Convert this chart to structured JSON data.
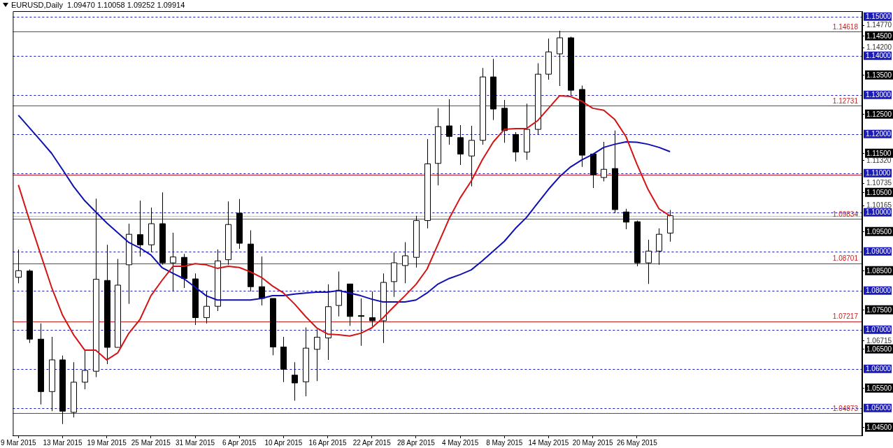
{
  "chart_data": {
    "type": "candlestick",
    "title": "EURUSD,Daily  1.09470 1.10058 1.09252 1.09914",
    "categories": [
      "9 Mar 2015",
      null,
      null,
      null,
      "13 Mar 2015",
      null,
      null,
      null,
      "19 Mar 2015",
      null,
      null,
      null,
      "25 Mar 2015",
      null,
      null,
      null,
      "31 Mar 2015",
      null,
      null,
      null,
      "6 Apr 2015",
      null,
      null,
      null,
      "10 Apr 2015",
      null,
      null,
      null,
      "16 Apr 2015",
      null,
      null,
      null,
      "22 Apr 2015",
      null,
      null,
      null,
      "28 Apr 2015",
      null,
      null,
      null,
      "4 May 2015",
      null,
      null,
      null,
      "8 May 2015",
      null,
      null,
      null,
      "14 May 2015",
      null,
      null,
      null,
      "20 May 2015",
      null,
      null,
      null,
      "26 May 2015",
      null,
      null,
      null
    ],
    "ohlc": [
      [
        1.0834,
        1.0905,
        1.0819,
        1.0851
      ],
      [
        1.085,
        1.0854,
        1.0666,
        1.0676
      ],
      [
        1.0676,
        1.0716,
        1.0509,
        1.0542
      ],
      [
        1.0542,
        1.0682,
        1.0492,
        1.0623
      ],
      [
        1.0623,
        1.0634,
        1.0459,
        1.0492
      ],
      [
        1.0489,
        1.0617,
        1.0476,
        1.0566
      ],
      [
        1.0566,
        1.0648,
        1.0548,
        1.0596
      ],
      [
        1.0594,
        1.1035,
        1.0579,
        1.0829
      ],
      [
        1.0826,
        1.0917,
        1.0612,
        1.0655
      ],
      [
        1.0655,
        1.0881,
        1.0655,
        1.0814
      ],
      [
        1.0866,
        1.0971,
        1.0766,
        1.0944
      ],
      [
        1.0943,
        1.103,
        1.0887,
        1.0917
      ],
      [
        1.0917,
        1.1012,
        1.0898,
        1.0971
      ],
      [
        1.0971,
        1.1051,
        1.0866,
        1.0871
      ],
      [
        1.0871,
        1.0948,
        1.0798,
        1.0886
      ],
      [
        1.0885,
        1.0894,
        1.0807,
        1.0831
      ],
      [
        1.083,
        1.0844,
        1.0712,
        1.0731
      ],
      [
        1.0731,
        1.0798,
        1.0716,
        1.076
      ],
      [
        1.076,
        1.0905,
        1.0748,
        1.0876
      ],
      [
        1.0879,
        1.1028,
        1.0866,
        1.0969
      ],
      [
        1.0998,
        1.1034,
        1.0907,
        1.0921
      ],
      [
        1.0919,
        1.0954,
        1.0798,
        1.081
      ],
      [
        1.081,
        1.0887,
        1.0762,
        1.078
      ],
      [
        1.078,
        1.078,
        1.0635,
        1.0656
      ],
      [
        1.0656,
        1.0682,
        1.0566,
        1.0599
      ],
      [
        1.0584,
        1.0617,
        1.0519,
        1.0564
      ],
      [
        1.0567,
        1.0706,
        1.053,
        1.0653
      ],
      [
        1.065,
        1.0701,
        1.0569,
        1.0681
      ],
      [
        1.0679,
        1.0816,
        1.0623,
        1.0759
      ],
      [
        1.0762,
        1.0849,
        1.0734,
        1.0801
      ],
      [
        1.0817,
        1.0817,
        1.071,
        1.0734
      ],
      [
        1.0736,
        1.078,
        1.0659,
        1.0735
      ],
      [
        1.0731,
        1.0798,
        1.0709,
        1.0723
      ],
      [
        1.0723,
        1.0844,
        1.0666,
        1.0821
      ],
      [
        1.0823,
        1.0898,
        1.0784,
        1.0871
      ],
      [
        1.0864,
        1.0924,
        1.0819,
        1.0889
      ],
      [
        1.0885,
        1.0991,
        1.0859,
        1.0979
      ],
      [
        1.0979,
        1.1187,
        1.0959,
        1.1124
      ],
      [
        1.1125,
        1.1266,
        1.1069,
        1.1219
      ],
      [
        1.1221,
        1.1289,
        1.1173,
        1.1194
      ],
      [
        1.1191,
        1.1223,
        1.1121,
        1.1149
      ],
      [
        1.1144,
        1.1221,
        1.1066,
        1.1184
      ],
      [
        1.1184,
        1.1369,
        1.1173,
        1.1346
      ],
      [
        1.1346,
        1.1392,
        1.1236,
        1.1264
      ],
      [
        1.1266,
        1.1287,
        1.1178,
        1.1209
      ],
      [
        1.1199,
        1.1205,
        1.113,
        1.1154
      ],
      [
        1.1154,
        1.1278,
        1.1134,
        1.1212
      ],
      [
        1.1212,
        1.1381,
        1.1199,
        1.1353
      ],
      [
        1.1353,
        1.1444,
        1.1339,
        1.141
      ],
      [
        1.1405,
        1.1464,
        1.1323,
        1.1446
      ],
      [
        1.1446,
        1.1449,
        1.1299,
        1.1312
      ],
      [
        1.1314,
        1.1324,
        1.1116,
        1.1146
      ],
      [
        1.1149,
        1.1149,
        1.1062,
        1.1096
      ],
      [
        1.1089,
        1.118,
        1.1079,
        1.111
      ],
      [
        1.1112,
        1.1209,
        1.0998,
        1.1007
      ],
      [
        1.1001,
        1.1009,
        1.0957,
        1.0975
      ],
      [
        1.0976,
        1.0979,
        1.0862,
        1.0871
      ],
      [
        1.0871,
        1.093,
        1.0817,
        1.0901
      ],
      [
        1.0901,
        1.0959,
        1.0866,
        1.0944
      ],
      [
        1.0947,
        1.10058,
        1.09252,
        1.09914
      ]
    ],
    "series": [
      {
        "type": "line",
        "color": "#d41414",
        "values": [
          1.107,
          1.098,
          1.0894,
          1.0809,
          1.0737,
          1.0687,
          1.0648,
          1.0648,
          1.0623,
          1.0641,
          1.0691,
          1.0726,
          1.0787,
          1.0826,
          1.0862,
          1.0862,
          1.0869,
          1.0866,
          1.0857,
          1.0862,
          1.0859,
          1.0848,
          1.0834,
          1.0812,
          1.0794,
          1.0766,
          1.0734,
          1.0705,
          1.0689,
          1.0687,
          1.0684,
          1.0691,
          1.0705,
          1.073,
          1.0759,
          1.0787,
          1.0816,
          1.0855,
          1.0919,
          1.0984,
          1.1037,
          1.108,
          1.1134,
          1.118,
          1.1212,
          1.1214,
          1.1214,
          1.1234,
          1.1266,
          1.1298,
          1.1296,
          1.1284,
          1.1266,
          1.1261,
          1.1237,
          1.1194,
          1.1123,
          1.1059,
          1.1009,
          1.0991
        ]
      },
      {
        "type": "line",
        "color": "#1010b0",
        "values": [
          1.1248,
          1.1216,
          1.1184,
          1.1151,
          1.1109,
          1.1066,
          1.103,
          1.1001,
          1.0973,
          1.0948,
          1.0923,
          1.0909,
          1.0891,
          1.0859,
          1.0844,
          1.083,
          1.0809,
          1.0787,
          1.0776,
          1.0776,
          1.0776,
          1.0776,
          1.078,
          1.0787,
          1.0787,
          1.0791,
          1.0794,
          1.0796,
          1.0796,
          1.08,
          1.0794,
          1.0787,
          1.0778,
          1.0771,
          1.0771,
          1.0771,
          1.0776,
          1.0794,
          1.0817,
          1.0831,
          1.0841,
          1.0853,
          1.0876,
          1.0901,
          1.0926,
          1.0959,
          1.0987,
          1.1023,
          1.1059,
          1.1091,
          1.1116,
          1.1134,
          1.1148,
          1.1166,
          1.1174,
          1.118,
          1.1179,
          1.1174,
          1.1166,
          1.1155
        ]
      }
    ],
    "ylim": [
      1.043,
      1.1514
    ],
    "yticks": [
      {
        "value": 1.1477,
        "label": "1.14770"
      },
      {
        "value": 1.145,
        "label": "1.14500"
      },
      {
        "value": 1.142,
        "label": "1.14200"
      },
      {
        "value": 1.135,
        "label": "1.13500"
      },
      {
        "value": 1.125,
        "label": "1.12500"
      },
      {
        "value": 1.115,
        "label": "1.11500"
      },
      {
        "value": 1.1132,
        "label": "1.11320"
      },
      {
        "value": 1.10735,
        "label": "1.10735"
      },
      {
        "value": 1.105,
        "label": "1.10500"
      },
      {
        "value": 1.10165,
        "label": "1.10165"
      },
      {
        "value": 1.095,
        "label": "1.09500"
      },
      {
        "value": 1.085,
        "label": "1.08500"
      },
      {
        "value": 1.075,
        "label": "1.07500"
      },
      {
        "value": 1.06715,
        "label": "1.06715"
      },
      {
        "value": 1.065,
        "label": "1.06500"
      },
      {
        "value": 1.055,
        "label": "1.05500"
      },
      {
        "value": 1.045,
        "label": "1.04500"
      }
    ],
    "ref_lines": [
      {
        "axis": "y",
        "value": 1.15,
        "label": "1.15000",
        "color": "#1a1ab4",
        "line_style": "dashed"
      },
      {
        "axis": "y",
        "value": 1.14,
        "label": "1.14000",
        "color": "#1a1ab4",
        "line_style": "dashed"
      },
      {
        "axis": "y",
        "value": 1.13,
        "label": "1.13000",
        "color": "#1a1ab4",
        "line_style": "dashed"
      },
      {
        "axis": "y",
        "value": 1.12,
        "label": "1.12000",
        "color": "#1a1ab4",
        "line_style": "dashed"
      },
      {
        "axis": "y",
        "value": 1.11,
        "label": "1.11000",
        "color": "#1a1ab4",
        "line_style": "dashed"
      },
      {
        "axis": "y",
        "value": 1.1,
        "label": "1.10000",
        "color": "#1a1ab4",
        "line_style": "dashed"
      },
      {
        "axis": "y",
        "value": 1.09,
        "label": "1.09000",
        "color": "#1a1ab4",
        "line_style": "dashed"
      },
      {
        "axis": "y",
        "value": 1.08,
        "label": "1.08000",
        "color": "#1a1ab4",
        "line_style": "dashed"
      },
      {
        "axis": "y",
        "value": 1.07,
        "label": "1.07000",
        "color": "#1a1ab4",
        "line_style": "dashed"
      },
      {
        "axis": "y",
        "value": 1.06,
        "label": "1.06000",
        "color": "#1a1ab4",
        "line_style": "dashed"
      },
      {
        "axis": "y",
        "value": 1.05,
        "label": "1.05000",
        "color": "#1a1ab4",
        "line_style": "dashed"
      },
      {
        "axis": "y",
        "value": 1.14618,
        "label": "1.14618",
        "color": "#c81e1e",
        "line_style": "solid"
      },
      {
        "axis": "y",
        "value": 1.12731,
        "label": "1.12731",
        "color": "#c81e1e",
        "line_style": "solid"
      },
      {
        "axis": "y",
        "value": 1.1096,
        "label": null,
        "color": "#c81e1e",
        "line_style": "solid"
      },
      {
        "axis": "y",
        "value": 1.09914,
        "label": null,
        "color": "#c0c0c0",
        "line_style": "solid"
      },
      {
        "axis": "y",
        "value": 1.09834,
        "label": "1.09834",
        "color": "#c81e1e",
        "line_style": "solid"
      },
      {
        "axis": "y",
        "value": 1.08701,
        "label": "1.08701",
        "color": "#c81e1e",
        "line_style": "solid"
      },
      {
        "axis": "y",
        "value": 1.07217,
        "label": "1.07217",
        "color": "#c81e1e",
        "line_style": "solid"
      },
      {
        "axis": "y",
        "value": 1.04873,
        "label": "1.04873",
        "color": "#c81e1e",
        "line_style": "solid"
      }
    ]
  }
}
